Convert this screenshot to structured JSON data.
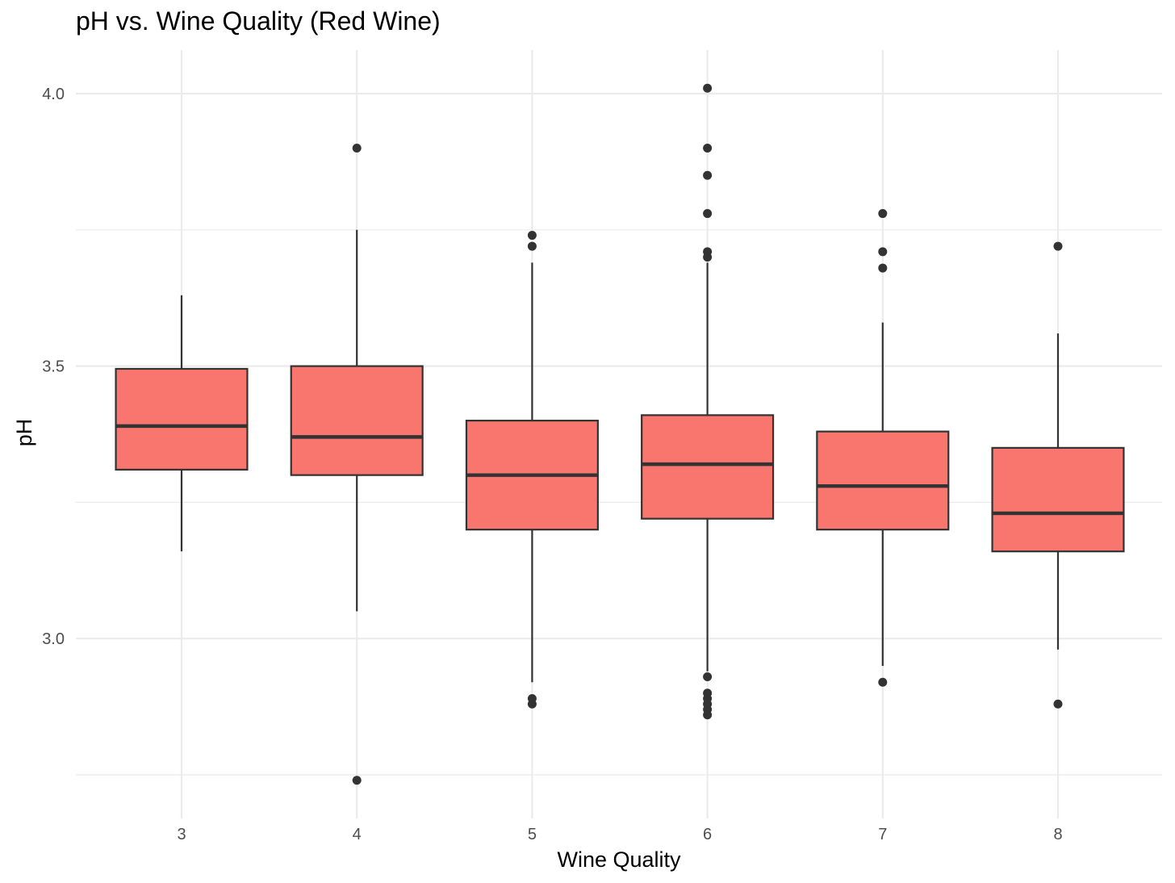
{
  "chart_data": {
    "type": "boxplot",
    "title": "pH vs. Wine Quality (Red Wine)",
    "xlabel": "Wine Quality",
    "ylabel": "pH",
    "categories": [
      "3",
      "4",
      "5",
      "6",
      "7",
      "8"
    ],
    "y_ticks": [
      3.0,
      3.5,
      4.0
    ],
    "y_tick_labels": [
      "3.0",
      "3.5",
      "4.0"
    ],
    "ylim": [
      2.67,
      4.08
    ],
    "grid": true,
    "fill_color": "#F8766D",
    "outline_color": "#333333",
    "boxes": [
      {
        "category": "3",
        "whisker_low": 3.16,
        "q1": 3.31,
        "median": 3.39,
        "q3": 3.495,
        "whisker_high": 3.63,
        "outliers": []
      },
      {
        "category": "4",
        "whisker_low": 3.05,
        "q1": 3.3,
        "median": 3.37,
        "q3": 3.5,
        "whisker_high": 3.75,
        "outliers": [
          2.74,
          3.9
        ]
      },
      {
        "category": "5",
        "whisker_low": 2.92,
        "q1": 3.2,
        "median": 3.3,
        "q3": 3.4,
        "whisker_high": 3.69,
        "outliers": [
          2.88,
          2.89,
          3.72,
          3.74
        ]
      },
      {
        "category": "6",
        "whisker_low": 2.94,
        "q1": 3.22,
        "median": 3.32,
        "q3": 3.41,
        "whisker_high": 3.69,
        "outliers": [
          2.86,
          2.87,
          2.88,
          2.89,
          2.9,
          2.93,
          3.7,
          3.71,
          3.78,
          3.85,
          3.9,
          4.01
        ]
      },
      {
        "category": "7",
        "whisker_low": 2.95,
        "q1": 3.2,
        "median": 3.28,
        "q3": 3.38,
        "whisker_high": 3.58,
        "outliers": [
          2.92,
          3.68,
          3.71,
          3.78
        ]
      },
      {
        "category": "8",
        "whisker_low": 2.98,
        "q1": 3.16,
        "median": 3.23,
        "q3": 3.35,
        "whisker_high": 3.56,
        "outliers": [
          2.88,
          3.72
        ]
      }
    ]
  }
}
